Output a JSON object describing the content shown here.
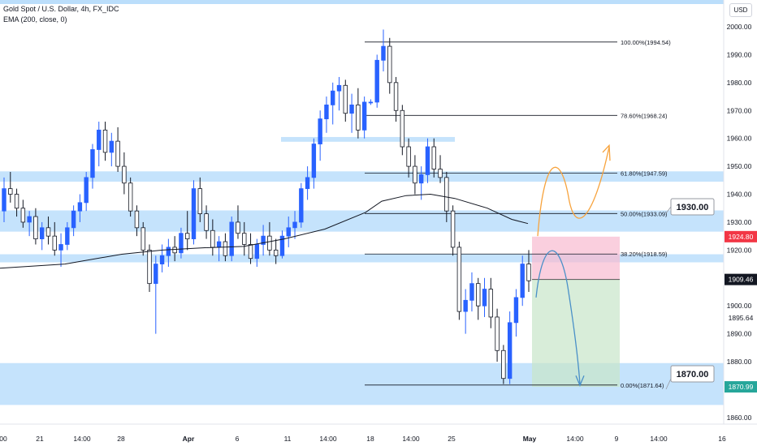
{
  "header": {
    "title": "Gold Spot / U.S. Dollar, 4h, FX_IDC",
    "indicator": "EMA (200, close, 0)",
    "currency": "USD"
  },
  "colors": {
    "up": "#2962ff",
    "down": "#131722",
    "zone": "#bbdefb",
    "ema": "#131722",
    "fib": "#131722",
    "risk": "#f8bbd0",
    "reward": "#c8e6c9",
    "orange_path": "#f7a33d",
    "blue_path": "#4a90c8",
    "current_price_bg": "#131722",
    "stop_bg": "#f23645",
    "target_bg": "#26a69a"
  },
  "chart_data": {
    "type": "candlestick",
    "title": "Gold Spot / U.S. Dollar, 4h, FX_IDC",
    "ylim": [
      1855,
      2005
    ],
    "y_ticks": [
      2000,
      1990,
      1980,
      1970,
      1960,
      1950,
      1940,
      1930,
      1920,
      1910,
      1900,
      1890,
      1880,
      1870,
      1860
    ],
    "x_ticks": [
      "00",
      "21",
      "14:00",
      "28",
      "Apr",
      "6",
      "11",
      "14:00",
      "18",
      "14:00",
      "25",
      "May",
      "14:00",
      "9",
      "14:00",
      "16"
    ],
    "price_labels": {
      "current": "1909.46",
      "stop": "1924.80",
      "target": "1870.99",
      "extra": "1895.64"
    },
    "fibonacci": [
      {
        "label": "100.00%(1994.54)",
        "price": 1994.54
      },
      {
        "label": "78.60%(1968.24)",
        "price": 1968.24
      },
      {
        "label": "61.80%(1947.59)",
        "price": 1947.59
      },
      {
        "label": "50.00%(1933.09)",
        "price": 1933.09
      },
      {
        "label": "38.20%(1918.59)",
        "price": 1918.59
      },
      {
        "label": "0.00%(1871.64)",
        "price": 1871.64
      }
    ],
    "callouts": [
      "1930.00",
      "1870.00"
    ],
    "zones": [
      {
        "from": 1944.5,
        "to": 1948.2
      },
      {
        "from": 1958.8,
        "to": 1960.5
      },
      {
        "from": 1926.6,
        "to": 1934.2
      },
      {
        "from": 1915.6,
        "to": 1918.5
      },
      {
        "from": 1864.5,
        "to": 1879.5
      }
    ],
    "ema": [
      [
        0,
        1913.5
      ],
      [
        80,
        1915
      ],
      [
        150,
        1918.5
      ],
      [
        200,
        1920
      ],
      [
        250,
        1920.8
      ],
      [
        300,
        1921.3
      ],
      [
        350,
        1924
      ],
      [
        400,
        1927.5
      ],
      [
        450,
        1933.5
      ],
      [
        470,
        1937.5
      ],
      [
        500,
        1939.5
      ],
      [
        530,
        1940
      ],
      [
        560,
        1938.5
      ],
      [
        600,
        1935
      ],
      [
        630,
        1931
      ],
      [
        650,
        1929.5
      ]
    ],
    "candles": [
      {
        "o": 1934,
        "h": 1946,
        "l": 1930,
        "c": 1942
      },
      {
        "o": 1942,
        "h": 1948,
        "l": 1937,
        "c": 1940
      },
      {
        "o": 1940,
        "h": 1942,
        "l": 1932,
        "c": 1935
      },
      {
        "o": 1935,
        "h": 1938,
        "l": 1928,
        "c": 1930
      },
      {
        "o": 1930,
        "h": 1934,
        "l": 1925,
        "c": 1932
      },
      {
        "o": 1932,
        "h": 1935,
        "l": 1922,
        "c": 1924
      },
      {
        "o": 1924,
        "h": 1930,
        "l": 1920,
        "c": 1928
      },
      {
        "o": 1928,
        "h": 1932,
        "l": 1922,
        "c": 1925
      },
      {
        "o": 1925,
        "h": 1930,
        "l": 1918,
        "c": 1920
      },
      {
        "o": 1920,
        "h": 1926,
        "l": 1914,
        "c": 1922
      },
      {
        "o": 1922,
        "h": 1930,
        "l": 1920,
        "c": 1928
      },
      {
        "o": 1928,
        "h": 1936,
        "l": 1925,
        "c": 1934
      },
      {
        "o": 1934,
        "h": 1940,
        "l": 1930,
        "c": 1937
      },
      {
        "o": 1937,
        "h": 1948,
        "l": 1934,
        "c": 1946
      },
      {
        "o": 1946,
        "h": 1958,
        "l": 1942,
        "c": 1956
      },
      {
        "o": 1956,
        "h": 1966,
        "l": 1950,
        "c": 1963
      },
      {
        "o": 1963,
        "h": 1966,
        "l": 1952,
        "c": 1955
      },
      {
        "o": 1955,
        "h": 1962,
        "l": 1950,
        "c": 1959
      },
      {
        "o": 1959,
        "h": 1964,
        "l": 1948,
        "c": 1950
      },
      {
        "o": 1950,
        "h": 1955,
        "l": 1940,
        "c": 1944
      },
      {
        "o": 1944,
        "h": 1946,
        "l": 1932,
        "c": 1934
      },
      {
        "o": 1934,
        "h": 1936,
        "l": 1925,
        "c": 1928
      },
      {
        "o": 1928,
        "h": 1930,
        "l": 1918,
        "c": 1920
      },
      {
        "o": 1920,
        "h": 1922,
        "l": 1905,
        "c": 1908
      },
      {
        "o": 1908,
        "h": 1918,
        "l": 1890,
        "c": 1915
      },
      {
        "o": 1915,
        "h": 1922,
        "l": 1912,
        "c": 1918
      },
      {
        "o": 1918,
        "h": 1924,
        "l": 1914,
        "c": 1921
      },
      {
        "o": 1921,
        "h": 1925,
        "l": 1916,
        "c": 1919
      },
      {
        "o": 1919,
        "h": 1928,
        "l": 1917,
        "c": 1926
      },
      {
        "o": 1926,
        "h": 1934,
        "l": 1920,
        "c": 1924
      },
      {
        "o": 1924,
        "h": 1945,
        "l": 1922,
        "c": 1942
      },
      {
        "o": 1942,
        "h": 1946,
        "l": 1930,
        "c": 1933
      },
      {
        "o": 1933,
        "h": 1936,
        "l": 1924,
        "c": 1927
      },
      {
        "o": 1927,
        "h": 1931,
        "l": 1918,
        "c": 1921
      },
      {
        "o": 1921,
        "h": 1925,
        "l": 1916,
        "c": 1923
      },
      {
        "o": 1923,
        "h": 1926,
        "l": 1916,
        "c": 1918
      },
      {
        "o": 1918,
        "h": 1932,
        "l": 1916,
        "c": 1930
      },
      {
        "o": 1930,
        "h": 1936,
        "l": 1924,
        "c": 1926
      },
      {
        "o": 1926,
        "h": 1930,
        "l": 1918,
        "c": 1922
      },
      {
        "o": 1922,
        "h": 1926,
        "l": 1915,
        "c": 1917
      },
      {
        "o": 1917,
        "h": 1924,
        "l": 1914,
        "c": 1922
      },
      {
        "o": 1922,
        "h": 1929,
        "l": 1918,
        "c": 1925
      },
      {
        "o": 1925,
        "h": 1930,
        "l": 1918,
        "c": 1920
      },
      {
        "o": 1920,
        "h": 1924,
        "l": 1915,
        "c": 1918
      },
      {
        "o": 1918,
        "h": 1927,
        "l": 1917,
        "c": 1925
      },
      {
        "o": 1925,
        "h": 1932,
        "l": 1921,
        "c": 1928
      },
      {
        "o": 1928,
        "h": 1934,
        "l": 1924,
        "c": 1930
      },
      {
        "o": 1930,
        "h": 1944,
        "l": 1928,
        "c": 1942
      },
      {
        "o": 1942,
        "h": 1950,
        "l": 1938,
        "c": 1946
      },
      {
        "o": 1946,
        "h": 1960,
        "l": 1942,
        "c": 1958
      },
      {
        "o": 1958,
        "h": 1970,
        "l": 1952,
        "c": 1967
      },
      {
        "o": 1967,
        "h": 1975,
        "l": 1962,
        "c": 1972
      },
      {
        "o": 1972,
        "h": 1980,
        "l": 1965,
        "c": 1977
      },
      {
        "o": 1977,
        "h": 1982,
        "l": 1970,
        "c": 1979
      },
      {
        "o": 1979,
        "h": 1981,
        "l": 1966,
        "c": 1969
      },
      {
        "o": 1969,
        "h": 1976,
        "l": 1962,
        "c": 1972
      },
      {
        "o": 1972,
        "h": 1978,
        "l": 1960,
        "c": 1963
      },
      {
        "o": 1963,
        "h": 1975,
        "l": 1960,
        "c": 1973
      },
      {
        "o": 1973,
        "h": 1974,
        "l": 1972,
        "c": 1973
      },
      {
        "o": 1973,
        "h": 1990,
        "l": 1971,
        "c": 1988
      },
      {
        "o": 1988,
        "h": 1999,
        "l": 1984,
        "c": 1993
      },
      {
        "o": 1993,
        "h": 1996,
        "l": 1976,
        "c": 1980
      },
      {
        "o": 1980,
        "h": 1982,
        "l": 1966,
        "c": 1970
      },
      {
        "o": 1970,
        "h": 1972,
        "l": 1954,
        "c": 1957
      },
      {
        "o": 1957,
        "h": 1960,
        "l": 1946,
        "c": 1950
      },
      {
        "o": 1950,
        "h": 1954,
        "l": 1940,
        "c": 1944
      },
      {
        "o": 1944,
        "h": 1950,
        "l": 1938,
        "c": 1947
      },
      {
        "o": 1947,
        "h": 1960,
        "l": 1944,
        "c": 1957
      },
      {
        "o": 1957,
        "h": 1960,
        "l": 1946,
        "c": 1949
      },
      {
        "o": 1949,
        "h": 1954,
        "l": 1944,
        "c": 1946
      },
      {
        "o": 1946,
        "h": 1948,
        "l": 1930,
        "c": 1934
      },
      {
        "o": 1934,
        "h": 1936,
        "l": 1918,
        "c": 1921
      },
      {
        "o": 1921,
        "h": 1923,
        "l": 1895,
        "c": 1898
      },
      {
        "o": 1898,
        "h": 1906,
        "l": 1890,
        "c": 1902
      },
      {
        "o": 1902,
        "h": 1912,
        "l": 1898,
        "c": 1908
      },
      {
        "o": 1908,
        "h": 1910,
        "l": 1895,
        "c": 1900
      },
      {
        "o": 1900,
        "h": 1910,
        "l": 1896,
        "c": 1906
      },
      {
        "o": 1906,
        "h": 1910,
        "l": 1892,
        "c": 1896
      },
      {
        "o": 1896,
        "h": 1899,
        "l": 1880,
        "c": 1884
      },
      {
        "o": 1884,
        "h": 1886,
        "l": 1872,
        "c": 1874
      },
      {
        "o": 1874,
        "h": 1898,
        "l": 1872,
        "c": 1894
      },
      {
        "o": 1894,
        "h": 1906,
        "l": 1889,
        "c": 1903
      },
      {
        "o": 1903,
        "h": 1918,
        "l": 1900,
        "c": 1915
      },
      {
        "o": 1915,
        "h": 1920,
        "l": 1905,
        "c": 1909
      }
    ]
  }
}
